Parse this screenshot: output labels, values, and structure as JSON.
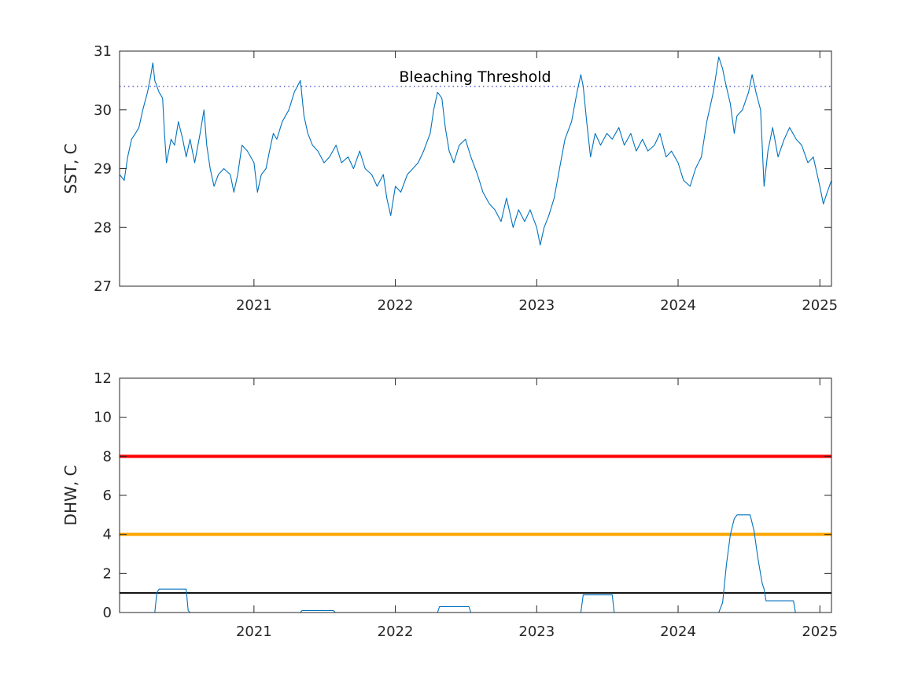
{
  "chart_data": [
    {
      "type": "line",
      "ylabel": "SST, C",
      "xlim": [
        "2020-01-20",
        "2025-01-31"
      ],
      "ylim": [
        27,
        31
      ],
      "yticks": [
        "27",
        "28",
        "29",
        "30",
        "31"
      ],
      "xticks": [
        "2021",
        "2022",
        "2023",
        "2024",
        "2025"
      ],
      "grid": false,
      "threshold": {
        "label": "Bleaching Threshold",
        "value": 30.4,
        "style": "dotted",
        "color": "#3b3bc4"
      },
      "series": [
        {
          "color": "#0072bd",
          "points": [
            [
              "2020-01-20",
              28.9
            ],
            [
              "2020-02-01",
              28.8
            ],
            [
              "2020-02-10",
              29.2
            ],
            [
              "2020-02-20",
              29.5
            ],
            [
              "2020-03-01",
              29.6
            ],
            [
              "2020-03-10",
              29.7
            ],
            [
              "2020-03-20",
              30.0
            ],
            [
              "2020-04-01",
              30.3
            ],
            [
              "2020-04-10",
              30.6
            ],
            [
              "2020-04-15",
              30.8
            ],
            [
              "2020-04-20",
              30.5
            ],
            [
              "2020-05-01",
              30.3
            ],
            [
              "2020-05-10",
              30.2
            ],
            [
              "2020-05-15",
              29.6
            ],
            [
              "2020-05-20",
              29.1
            ],
            [
              "2020-06-01",
              29.5
            ],
            [
              "2020-06-10",
              29.4
            ],
            [
              "2020-06-20",
              29.8
            ],
            [
              "2020-07-01",
              29.5
            ],
            [
              "2020-07-10",
              29.2
            ],
            [
              "2020-07-20",
              29.5
            ],
            [
              "2020-08-01",
              29.1
            ],
            [
              "2020-08-15",
              29.6
            ],
            [
              "2020-08-25",
              30.0
            ],
            [
              "2020-09-01",
              29.4
            ],
            [
              "2020-09-10",
              29.0
            ],
            [
              "2020-09-20",
              28.7
            ],
            [
              "2020-10-01",
              28.9
            ],
            [
              "2020-10-15",
              29.0
            ],
            [
              "2020-11-01",
              28.9
            ],
            [
              "2020-11-10",
              28.6
            ],
            [
              "2020-11-20",
              28.9
            ],
            [
              "2020-12-01",
              29.4
            ],
            [
              "2020-12-15",
              29.3
            ],
            [
              "2021-01-01",
              29.1
            ],
            [
              "2021-01-10",
              28.6
            ],
            [
              "2021-01-20",
              28.9
            ],
            [
              "2021-02-01",
              29.0
            ],
            [
              "2021-02-10",
              29.3
            ],
            [
              "2021-02-20",
              29.6
            ],
            [
              "2021-03-01",
              29.5
            ],
            [
              "2021-03-15",
              29.8
            ],
            [
              "2021-04-01",
              30.0
            ],
            [
              "2021-04-15",
              30.3
            ],
            [
              "2021-05-01",
              30.5
            ],
            [
              "2021-05-10",
              29.9
            ],
            [
              "2021-05-20",
              29.6
            ],
            [
              "2021-06-01",
              29.4
            ],
            [
              "2021-06-15",
              29.3
            ],
            [
              "2021-07-01",
              29.1
            ],
            [
              "2021-07-15",
              29.2
            ],
            [
              "2021-08-01",
              29.4
            ],
            [
              "2021-08-15",
              29.1
            ],
            [
              "2021-09-01",
              29.2
            ],
            [
              "2021-09-15",
              29.0
            ],
            [
              "2021-10-01",
              29.3
            ],
            [
              "2021-10-15",
              29.0
            ],
            [
              "2021-11-01",
              28.9
            ],
            [
              "2021-11-15",
              28.7
            ],
            [
              "2021-12-01",
              28.9
            ],
            [
              "2021-12-10",
              28.5
            ],
            [
              "2021-12-20",
              28.2
            ],
            [
              "2022-01-01",
              28.7
            ],
            [
              "2022-01-15",
              28.6
            ],
            [
              "2022-02-01",
              28.9
            ],
            [
              "2022-02-15",
              29.0
            ],
            [
              "2022-03-01",
              29.1
            ],
            [
              "2022-03-15",
              29.3
            ],
            [
              "2022-04-01",
              29.6
            ],
            [
              "2022-04-10",
              30.0
            ],
            [
              "2022-04-20",
              30.3
            ],
            [
              "2022-05-01",
              30.2
            ],
            [
              "2022-05-10",
              29.7
            ],
            [
              "2022-05-20",
              29.3
            ],
            [
              "2022-06-01",
              29.1
            ],
            [
              "2022-06-15",
              29.4
            ],
            [
              "2022-07-01",
              29.5
            ],
            [
              "2022-07-15",
              29.2
            ],
            [
              "2022-08-01",
              28.9
            ],
            [
              "2022-08-15",
              28.6
            ],
            [
              "2022-09-01",
              28.4
            ],
            [
              "2022-09-15",
              28.3
            ],
            [
              "2022-10-01",
              28.1
            ],
            [
              "2022-10-15",
              28.5
            ],
            [
              "2022-11-01",
              28.0
            ],
            [
              "2022-11-15",
              28.3
            ],
            [
              "2022-12-01",
              28.1
            ],
            [
              "2022-12-15",
              28.3
            ],
            [
              "2023-01-01",
              28.0
            ],
            [
              "2023-01-10",
              27.7
            ],
            [
              "2023-01-20",
              28.0
            ],
            [
              "2023-02-01",
              28.2
            ],
            [
              "2023-02-15",
              28.5
            ],
            [
              "2023-03-01",
              29.0
            ],
            [
              "2023-03-15",
              29.5
            ],
            [
              "2023-04-01",
              29.8
            ],
            [
              "2023-04-15",
              30.3
            ],
            [
              "2023-04-25",
              30.6
            ],
            [
              "2023-05-01",
              30.4
            ],
            [
              "2023-05-10",
              29.8
            ],
            [
              "2023-05-20",
              29.2
            ],
            [
              "2023-06-01",
              29.6
            ],
            [
              "2023-06-15",
              29.4
            ],
            [
              "2023-07-01",
              29.6
            ],
            [
              "2023-07-15",
              29.5
            ],
            [
              "2023-08-01",
              29.7
            ],
            [
              "2023-08-15",
              29.4
            ],
            [
              "2023-09-01",
              29.6
            ],
            [
              "2023-09-15",
              29.3
            ],
            [
              "2023-10-01",
              29.5
            ],
            [
              "2023-10-15",
              29.3
            ],
            [
              "2023-11-01",
              29.4
            ],
            [
              "2023-11-15",
              29.6
            ],
            [
              "2023-12-01",
              29.2
            ],
            [
              "2023-12-15",
              29.3
            ],
            [
              "2024-01-01",
              29.1
            ],
            [
              "2024-01-15",
              28.8
            ],
            [
              "2024-02-01",
              28.7
            ],
            [
              "2024-02-15",
              29.0
            ],
            [
              "2024-03-01",
              29.2
            ],
            [
              "2024-03-15",
              29.8
            ],
            [
              "2024-04-01",
              30.3
            ],
            [
              "2024-04-15",
              30.9
            ],
            [
              "2024-04-25",
              30.7
            ],
            [
              "2024-05-01",
              30.5
            ],
            [
              "2024-05-15",
              30.1
            ],
            [
              "2024-05-25",
              29.6
            ],
            [
              "2024-06-01",
              29.9
            ],
            [
              "2024-06-15",
              30.0
            ],
            [
              "2024-07-01",
              30.3
            ],
            [
              "2024-07-10",
              30.6
            ],
            [
              "2024-07-20",
              30.3
            ],
            [
              "2024-08-01",
              30.0
            ],
            [
              "2024-08-10",
              28.7
            ],
            [
              "2024-08-20",
              29.3
            ],
            [
              "2024-09-01",
              29.7
            ],
            [
              "2024-09-15",
              29.2
            ],
            [
              "2024-10-01",
              29.5
            ],
            [
              "2024-10-15",
              29.7
            ],
            [
              "2024-11-01",
              29.5
            ],
            [
              "2024-11-15",
              29.4
            ],
            [
              "2024-12-01",
              29.1
            ],
            [
              "2024-12-15",
              29.2
            ],
            [
              "2025-01-01",
              28.7
            ],
            [
              "2025-01-10",
              28.4
            ],
            [
              "2025-01-20",
              28.6
            ],
            [
              "2025-01-31",
              28.8
            ]
          ]
        }
      ]
    },
    {
      "type": "line",
      "ylabel": "DHW, C",
      "xlim": [
        "2020-01-20",
        "2025-01-31"
      ],
      "ylim": [
        0,
        12
      ],
      "yticks": [
        "0",
        "2",
        "4",
        "6",
        "8",
        "10",
        "12"
      ],
      "xticks": [
        "2021",
        "2022",
        "2023",
        "2024",
        "2025"
      ],
      "grid": false,
      "reference_lines": [
        {
          "value": 8,
          "color": "#ff0000"
        },
        {
          "value": 4,
          "color": "#ffa500"
        },
        {
          "value": 1,
          "color": "#000000"
        }
      ],
      "series": [
        {
          "color": "#0072bd",
          "points": [
            [
              "2020-01-20",
              0
            ],
            [
              "2020-04-20",
              0
            ],
            [
              "2020-04-25",
              1.0
            ],
            [
              "2020-05-01",
              1.2
            ],
            [
              "2020-07-10",
              1.2
            ],
            [
              "2020-07-15",
              0.1
            ],
            [
              "2020-07-20",
              0
            ],
            [
              "2021-05-01",
              0
            ],
            [
              "2021-05-05",
              0.1
            ],
            [
              "2021-07-25",
              0.1
            ],
            [
              "2021-07-30",
              0
            ],
            [
              "2022-04-20",
              0
            ],
            [
              "2022-04-25",
              0.3
            ],
            [
              "2022-07-10",
              0.3
            ],
            [
              "2022-07-15",
              0
            ],
            [
              "2023-04-25",
              0
            ],
            [
              "2023-05-01",
              0.9
            ],
            [
              "2023-07-15",
              0.9
            ],
            [
              "2023-07-20",
              0
            ],
            [
              "2024-04-15",
              0
            ],
            [
              "2024-04-25",
              0.5
            ],
            [
              "2024-05-05",
              2.5
            ],
            [
              "2024-05-15",
              4.0
            ],
            [
              "2024-05-25",
              4.8
            ],
            [
              "2024-06-01",
              5.0
            ],
            [
              "2024-07-05",
              5.0
            ],
            [
              "2024-07-15",
              4.2
            ],
            [
              "2024-07-25",
              2.8
            ],
            [
              "2024-08-05",
              1.5
            ],
            [
              "2024-08-10",
              1.2
            ],
            [
              "2024-08-15",
              0.6
            ],
            [
              "2024-10-25",
              0.6
            ],
            [
              "2024-10-30",
              0
            ],
            [
              "2025-01-31",
              0
            ]
          ]
        }
      ]
    }
  ]
}
